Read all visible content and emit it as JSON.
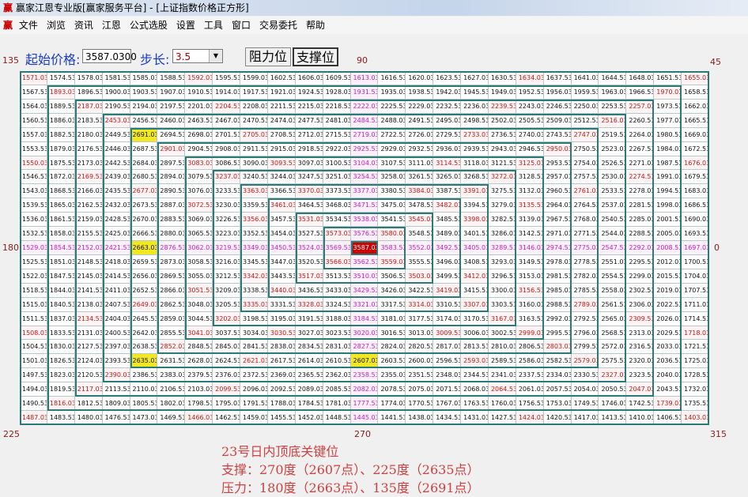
{
  "window": {
    "title": "赢家江恩专业版[赢家服务平台] - [上证指数价格正方形]",
    "logo": "赢"
  },
  "menu": [
    "文件",
    "浏览",
    "资讯",
    "江恩",
    "公式选股",
    "设置",
    "工具",
    "窗口",
    "交易委托",
    "帮助"
  ],
  "controls": {
    "start_label": "起始价格:",
    "start_value": "3587.0300",
    "step_label": "步长:",
    "step_value": "3.5",
    "resistance_button": "阻力位",
    "support_button": "支撑位"
  },
  "angles": {
    "a135": "135",
    "a90": "90",
    "a45": "45",
    "a180": "180",
    "a0": "0",
    "a225": "225",
    "a270": "270",
    "a315": "315"
  },
  "grid": {
    "size": 25,
    "start": 3587.03,
    "step": 3.5,
    "highlight_yellow": [
      "2691.03",
      "2663.03",
      "2635.03",
      "2607.03"
    ],
    "center": "3587.03",
    "colors": {
      "axis": "#c020c0",
      "diagonal": "#c01818",
      "line": "#2a7a7a",
      "center_bg": "#cc0000",
      "highlight_bg": "#f3e820"
    }
  },
  "notes": {
    "title": "23号日内顶底关键位",
    "support": "支撑：270度（2607点）、225度（2635点）",
    "resistance": "压力：180度（2663点）、135度（2691点）"
  }
}
